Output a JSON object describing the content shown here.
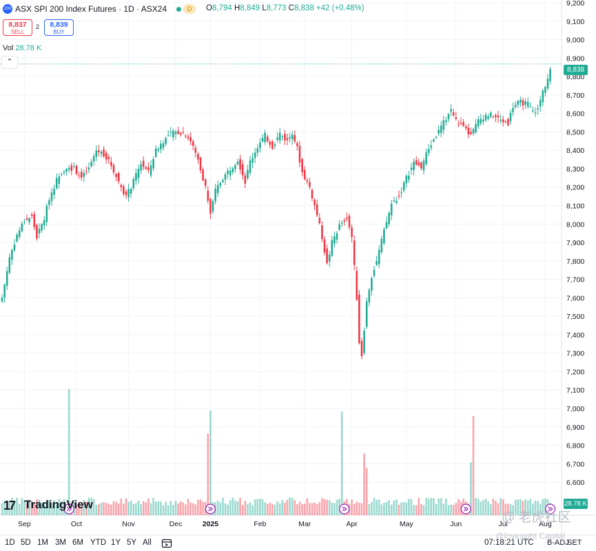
{
  "header": {
    "symbol_badge": "200",
    "title": "ASX SPI 200 Index Futures · 1D · ASX24",
    "session_badge": "D",
    "ohlc": {
      "o_label": "O",
      "o_value": "8,794",
      "h_label": "H",
      "h_value": "8,849",
      "l_label": "L",
      "l_value": "8,773",
      "c_label": "C",
      "c_value": "8,838",
      "change": "+42 (+0.48%)"
    }
  },
  "trade": {
    "sell_price": "8,837",
    "sell_label": "SELL",
    "spread": "2",
    "buy_price": "8,839",
    "buy_label": "BUY"
  },
  "volume_legend": {
    "label": "Vol",
    "value": "28.78 K"
  },
  "collapse_icon": "chevron-up-icon",
  "last_price_tag": "8,838",
  "volume_tag": "28.78 K",
  "logo_text": "TradingView",
  "bottom_bar": {
    "ranges": [
      "1D",
      "5D",
      "1M",
      "3M",
      "6M",
      "YTD",
      "1Y",
      "5Y",
      "All"
    ],
    "timestamp": "07:18:21 UTC",
    "adjust": "B-ADJ",
    "session": "SET"
  },
  "watermarks": {
    "line1": "@ 老虎社区",
    "line2": "@Invesight Capital"
  },
  "colors": {
    "up": "#22ab94",
    "down": "#f23645",
    "grid": "#f0f3fa",
    "accent": "#2962ff"
  },
  "chart_data": {
    "type": "candlestick",
    "title": "ASX SPI 200 Index Futures · 1D · ASX24",
    "y_axis": {
      "ticks": [
        9200,
        9100,
        9000,
        8900,
        8800,
        8700,
        8600,
        8500,
        8400,
        8300,
        8200,
        8100,
        8000,
        7900,
        7800,
        7700,
        7600,
        7500,
        7400,
        7300,
        7200,
        7100,
        7000,
        6900,
        6800,
        6700,
        6600
      ],
      "tick_labels": [
        "9,200",
        "9,100",
        "9,000",
        "8,900",
        "8,800",
        "8,700",
        "8,600",
        "8,500",
        "8,400",
        "8,300",
        "8,200",
        "8,100",
        "8,000",
        "7,900",
        "7,800",
        "7,700",
        "7,600",
        "7,500",
        "7,400",
        "7,300",
        "7,200",
        "7,100",
        "7,000",
        "6,900",
        "6,800",
        "6,700",
        "6,600"
      ],
      "range": [
        6560,
        9210
      ]
    },
    "x_axis": {
      "labels": [
        "Sep",
        "Oct",
        "Nov",
        "Dec",
        "2025",
        "Feb",
        "Mar",
        "Apr",
        "May",
        "Jun",
        "Jul",
        "Aug"
      ],
      "label_index": [
        9,
        30,
        51,
        70,
        84,
        104,
        122,
        141,
        163,
        183,
        202,
        219
      ]
    },
    "price_path": [
      [
        0,
        7600
      ],
      [
        3,
        7820
      ],
      [
        6,
        7940
      ],
      [
        9,
        8020
      ],
      [
        12,
        8040
      ],
      [
        14,
        7930
      ],
      [
        17,
        8030
      ],
      [
        19,
        8140
      ],
      [
        23,
        8270
      ],
      [
        26,
        8310
      ],
      [
        29,
        8300
      ],
      [
        32,
        8250
      ],
      [
        35,
        8300
      ],
      [
        38,
        8400
      ],
      [
        41,
        8380
      ],
      [
        44,
        8320
      ],
      [
        47,
        8230
      ],
      [
        50,
        8150
      ],
      [
        53,
        8230
      ],
      [
        56,
        8330
      ],
      [
        59,
        8280
      ],
      [
        62,
        8400
      ],
      [
        65,
        8450
      ],
      [
        68,
        8490
      ],
      [
        71,
        8500
      ],
      [
        74,
        8490
      ],
      [
        76,
        8450
      ],
      [
        79,
        8350
      ],
      [
        82,
        8200
      ],
      [
        84,
        8050
      ],
      [
        86,
        8180
      ],
      [
        89,
        8250
      ],
      [
        92,
        8300
      ],
      [
        95,
        8350
      ],
      [
        98,
        8230
      ],
      [
        100,
        8340
      ],
      [
        103,
        8420
      ],
      [
        106,
        8480
      ],
      [
        109,
        8420
      ],
      [
        112,
        8490
      ],
      [
        115,
        8450
      ],
      [
        117,
        8500
      ],
      [
        119,
        8410
      ],
      [
        121,
        8280
      ],
      [
        124,
        8200
      ],
      [
        127,
        8050
      ],
      [
        129,
        7930
      ],
      [
        131,
        7780
      ],
      [
        133,
        7900
      ],
      [
        136,
        7990
      ],
      [
        139,
        8040
      ],
      [
        141,
        7930
      ],
      [
        143,
        7600
      ],
      [
        144,
        7360
      ],
      [
        145,
        7290
      ],
      [
        147,
        7580
      ],
      [
        149,
        7720
      ],
      [
        151,
        7800
      ],
      [
        154,
        7960
      ],
      [
        157,
        8110
      ],
      [
        160,
        8150
      ],
      [
        163,
        8250
      ],
      [
        166,
        8330
      ],
      [
        169,
        8310
      ],
      [
        172,
        8410
      ],
      [
        175,
        8480
      ],
      [
        178,
        8550
      ],
      [
        181,
        8620
      ],
      [
        183,
        8560
      ],
      [
        186,
        8520
      ],
      [
        189,
        8480
      ],
      [
        192,
        8560
      ],
      [
        195,
        8590
      ],
      [
        198,
        8590
      ],
      [
        201,
        8560
      ],
      [
        204,
        8550
      ],
      [
        206,
        8640
      ],
      [
        209,
        8660
      ],
      [
        212,
        8650
      ],
      [
        214,
        8610
      ],
      [
        216,
        8620
      ],
      [
        218,
        8720
      ],
      [
        220,
        8790
      ],
      [
        221,
        8838
      ]
    ],
    "volume_spikes": [
      {
        "index": 27,
        "value": 229,
        "dir": "up"
      },
      {
        "index": 83,
        "value": 148,
        "dir": "down"
      },
      {
        "index": 84,
        "value": 190,
        "dir": "up"
      },
      {
        "index": 137,
        "value": 188,
        "dir": "up"
      },
      {
        "index": 146,
        "value": 112,
        "dir": "down"
      },
      {
        "index": 147,
        "value": 86,
        "dir": "down"
      },
      {
        "index": 190,
        "value": 180,
        "dir": "down"
      },
      {
        "index": 189,
        "value": 96,
        "dir": "up"
      }
    ],
    "volume_last": 28.78,
    "last_price": 8838,
    "grid": true,
    "legend": "top-left"
  }
}
